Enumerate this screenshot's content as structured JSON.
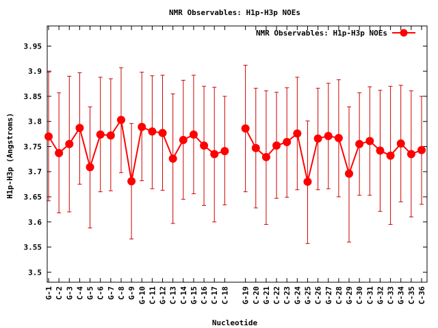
{
  "chart_data": {
    "type": "line",
    "title": "NMR Observables: H1p-H3p NOEs",
    "xlabel": "Nucleotide",
    "ylabel": "H1p-H3p (Angstroms)",
    "ylim": [
      3.48,
      3.99
    ],
    "yticks": [
      "3.5",
      "3.55",
      "3.6",
      "3.65",
      "3.7",
      "3.75",
      "3.8",
      "3.85",
      "3.9",
      "3.95"
    ],
    "grid": false,
    "legend": "top-right",
    "colors": {
      "series": "#ff0000",
      "error": "#cc0000",
      "axis": "#000000"
    },
    "categories": [
      "G-1",
      "C-2",
      "G-3",
      "C-4",
      "G-5",
      "C-6",
      "G-7",
      "C-8",
      "G-9",
      "G-10",
      "C-11",
      "G-12",
      "C-13",
      "C-14",
      "G-15",
      "C-16",
      "C-17",
      "C-18",
      "",
      "G-19",
      "C-20",
      "G-21",
      "C-22",
      "C-23",
      "G-24",
      "G-25",
      "C-26",
      "G-27",
      "C-28",
      "G-29",
      "C-30",
      "C-31",
      "G-32",
      "C-33",
      "G-34",
      "C-35",
      "C-36"
    ],
    "series": [
      {
        "name": "NMR Observables: H1p-H3p NOEs",
        "values": [
          3.77,
          3.737,
          3.755,
          3.787,
          3.709,
          3.774,
          3.772,
          3.803,
          3.681,
          3.789,
          3.78,
          3.777,
          3.726,
          3.763,
          3.774,
          3.752,
          3.735,
          3.741,
          null,
          3.786,
          3.747,
          3.729,
          3.752,
          3.759,
          3.776,
          3.68,
          3.766,
          3.771,
          3.767,
          3.696,
          3.755,
          3.761,
          3.742,
          3.732,
          3.756,
          3.735,
          3.743
        ],
        "err_low": [
          3.642,
          3.618,
          3.62,
          3.675,
          3.588,
          3.66,
          3.662,
          3.698,
          3.566,
          3.682,
          3.666,
          3.663,
          3.597,
          3.645,
          3.656,
          3.633,
          3.6,
          3.634,
          null,
          3.66,
          3.628,
          3.595,
          3.647,
          3.649,
          3.664,
          3.557,
          3.664,
          3.666,
          3.65,
          3.56,
          3.653,
          3.653,
          3.621,
          3.595,
          3.64,
          3.61,
          3.635
        ],
        "err_high": [
          3.898,
          3.857,
          3.89,
          3.897,
          3.829,
          3.888,
          3.885,
          3.907,
          3.796,
          3.898,
          3.891,
          3.892,
          3.855,
          3.882,
          3.892,
          3.87,
          3.868,
          3.85,
          null,
          3.912,
          3.866,
          3.861,
          3.858,
          3.867,
          3.888,
          3.801,
          3.866,
          3.876,
          3.883,
          3.829,
          3.857,
          3.869,
          3.862,
          3.87,
          3.872,
          3.861,
          3.85
        ]
      }
    ]
  }
}
